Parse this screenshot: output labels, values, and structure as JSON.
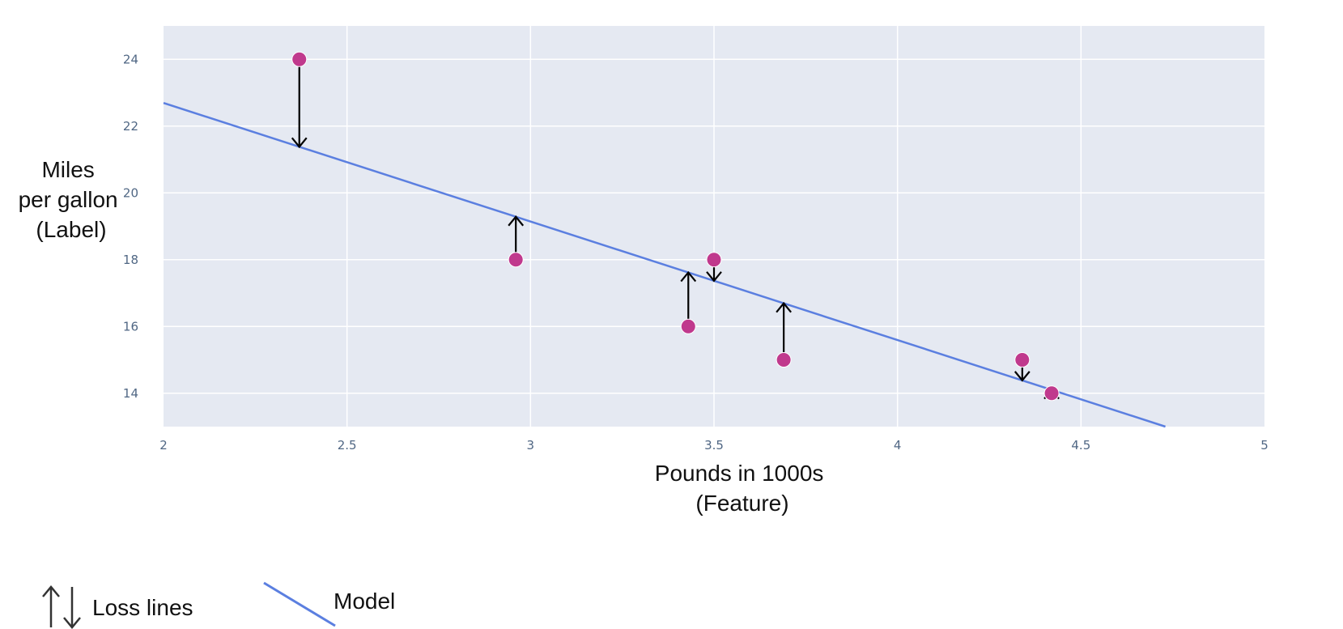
{
  "chart_data": {
    "type": "scatter",
    "title": "",
    "xlabel": [
      "Pounds in 1000s",
      "(Feature)"
    ],
    "ylabel": [
      "Miles",
      "per gallon",
      "(Label)"
    ],
    "xlim": [
      2,
      5
    ],
    "ylim": [
      13,
      25
    ],
    "xticks": [
      2,
      2.5,
      3,
      3.5,
      4,
      4.5,
      5
    ],
    "xtick_labels": [
      "2",
      "2.5",
      "3",
      "3.5",
      "4",
      "4.5",
      "5"
    ],
    "yticks": [
      14,
      16,
      18,
      20,
      22,
      24
    ],
    "ytick_labels": [
      "14",
      "16",
      "18",
      "20",
      "22",
      "24"
    ],
    "grid": true,
    "points": [
      {
        "x": 2.37,
        "y": 24
      },
      {
        "x": 2.96,
        "y": 18
      },
      {
        "x": 3.43,
        "y": 16
      },
      {
        "x": 3.5,
        "y": 18
      },
      {
        "x": 3.69,
        "y": 15
      },
      {
        "x": 4.34,
        "y": 15
      },
      {
        "x": 4.42,
        "y": 14
      }
    ],
    "model_line": {
      "x": [
        1.97,
        4.73
      ],
      "y": [
        22.8,
        13.0
      ]
    },
    "legend": {
      "placement": "bottom-left",
      "items": [
        {
          "label": "Loss lines",
          "kind": "arrows"
        },
        {
          "label": "Model",
          "kind": "line"
        }
      ]
    },
    "colors": {
      "plot_bg": "#e5e9f2",
      "grid": "#ffffff",
      "point": "#c0398d",
      "model": "#5b7fe0",
      "loss_arrow": "#000000"
    }
  }
}
